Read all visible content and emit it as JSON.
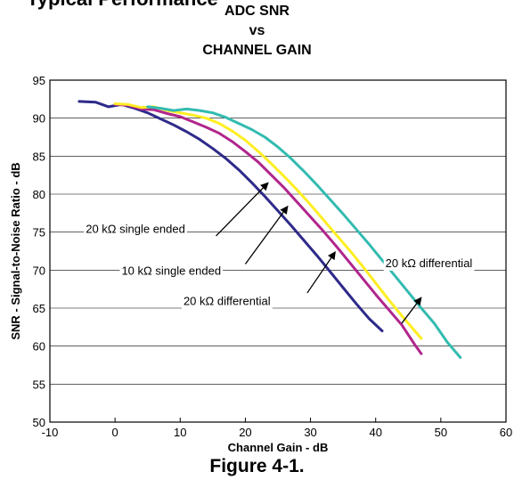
{
  "page": {
    "section_heading": "Typical Performance",
    "figure_caption": "Figure 4-1."
  },
  "chart_data": {
    "type": "line",
    "title_lines": [
      "ADC SNR",
      "vs",
      "CHANNEL GAIN"
    ],
    "xlabel": "Channel Gain - dB",
    "ylabel": "SNR - Signal-to-Noise Ratio - dB",
    "xlim": [
      -10,
      60
    ],
    "ylim": [
      50,
      95
    ],
    "x_ticks": [
      -10,
      0,
      10,
      20,
      30,
      40,
      50,
      60
    ],
    "y_ticks": [
      50,
      55,
      60,
      65,
      70,
      75,
      80,
      85,
      90,
      95
    ],
    "grid": "horizontal",
    "series": [
      {
        "color": "#2e2a8a",
        "points": [
          [
            -5.5,
            92.2
          ],
          [
            -3,
            92.1
          ],
          [
            -1,
            91.5
          ],
          [
            1,
            91.8
          ],
          [
            3,
            91.3
          ],
          [
            5,
            90.7
          ],
          [
            7,
            89.9
          ],
          [
            9,
            89.1
          ],
          [
            11,
            88.2
          ],
          [
            13,
            87.2
          ],
          [
            15,
            86.0
          ],
          [
            17,
            84.7
          ],
          [
            19,
            83.2
          ],
          [
            21,
            81.5
          ],
          [
            23,
            79.7
          ],
          [
            25,
            77.8
          ],
          [
            27,
            75.9
          ],
          [
            29,
            73.9
          ],
          [
            31,
            71.9
          ],
          [
            33,
            69.8
          ],
          [
            35,
            67.7
          ],
          [
            37,
            65.6
          ],
          [
            39,
            63.6
          ],
          [
            41,
            62.0
          ]
        ]
      },
      {
        "color": "#b1258c",
        "points": [
          [
            0,
            91.8
          ],
          [
            2,
            91.7
          ],
          [
            4,
            91.2
          ],
          [
            6,
            91.1
          ],
          [
            8,
            90.6
          ],
          [
            10,
            90.2
          ],
          [
            12,
            89.5
          ],
          [
            14,
            88.8
          ],
          [
            16,
            88.0
          ],
          [
            18,
            86.9
          ],
          [
            20,
            85.6
          ],
          [
            22,
            84.2
          ],
          [
            24,
            82.5
          ],
          [
            26,
            80.8
          ],
          [
            28,
            78.9
          ],
          [
            30,
            77.0
          ],
          [
            32,
            75.1
          ],
          [
            34,
            73.1
          ],
          [
            36,
            71.0
          ],
          [
            38,
            68.9
          ],
          [
            40,
            66.8
          ],
          [
            42,
            64.8
          ],
          [
            44,
            62.8
          ],
          [
            46,
            60.2
          ],
          [
            47,
            59.0
          ]
        ]
      },
      {
        "color": "#ffee22",
        "points": [
          [
            0,
            91.9
          ],
          [
            2,
            91.8
          ],
          [
            4,
            91.4
          ],
          [
            6,
            91.5
          ],
          [
            8,
            91.0
          ],
          [
            10,
            90.7
          ],
          [
            12,
            90.4
          ],
          [
            14,
            90.0
          ],
          [
            16,
            89.3
          ],
          [
            18,
            88.3
          ],
          [
            20,
            87.1
          ],
          [
            22,
            85.6
          ],
          [
            24,
            84.0
          ],
          [
            26,
            82.3
          ],
          [
            28,
            80.5
          ],
          [
            30,
            78.6
          ],
          [
            32,
            76.6
          ],
          [
            34,
            74.6
          ],
          [
            36,
            72.6
          ],
          [
            38,
            70.5
          ],
          [
            40,
            68.3
          ],
          [
            42,
            66.1
          ],
          [
            44,
            64.0
          ],
          [
            47,
            61.0
          ]
        ]
      },
      {
        "color": "#33bbb0",
        "points": [
          [
            5,
            91.5
          ],
          [
            7,
            91.3
          ],
          [
            9,
            91.0
          ],
          [
            11,
            91.2
          ],
          [
            13,
            91.0
          ],
          [
            15,
            90.7
          ],
          [
            17,
            90.1
          ],
          [
            19,
            89.3
          ],
          [
            21,
            88.5
          ],
          [
            23,
            87.5
          ],
          [
            25,
            86.2
          ],
          [
            27,
            84.7
          ],
          [
            29,
            83.0
          ],
          [
            31,
            81.2
          ],
          [
            33,
            79.3
          ],
          [
            35,
            77.4
          ],
          [
            37,
            75.4
          ],
          [
            39,
            73.4
          ],
          [
            41,
            71.3
          ],
          [
            43,
            69.2
          ],
          [
            45,
            67.1
          ],
          [
            47,
            65.0
          ],
          [
            49,
            63.0
          ],
          [
            51,
            60.5
          ],
          [
            53,
            58.5
          ]
        ]
      }
    ],
    "annotations": [
      {
        "text": "20 kΩ single ended",
        "label_at": [
          -4.5,
          74.9
        ],
        "arrow_from": [
          15.5,
          74.5
        ],
        "arrow_to": [
          23.5,
          81.5
        ]
      },
      {
        "text": "10 kΩ single ended",
        "label_at": [
          1.0,
          69.4
        ],
        "arrow_from": [
          20,
          70.8
        ],
        "arrow_to": [
          26.5,
          78.4
        ]
      },
      {
        "text": "20 kΩ differential",
        "label_at": [
          10.5,
          65.4
        ],
        "arrow_from": [
          29.5,
          67.0
        ],
        "arrow_to": [
          33.8,
          72.4
        ]
      },
      {
        "text": "20 kΩ differential",
        "label_at": [
          41.5,
          70.4
        ],
        "arrow_from": [
          44,
          63.0
        ],
        "arrow_to": [
          47,
          66.4
        ]
      }
    ]
  }
}
